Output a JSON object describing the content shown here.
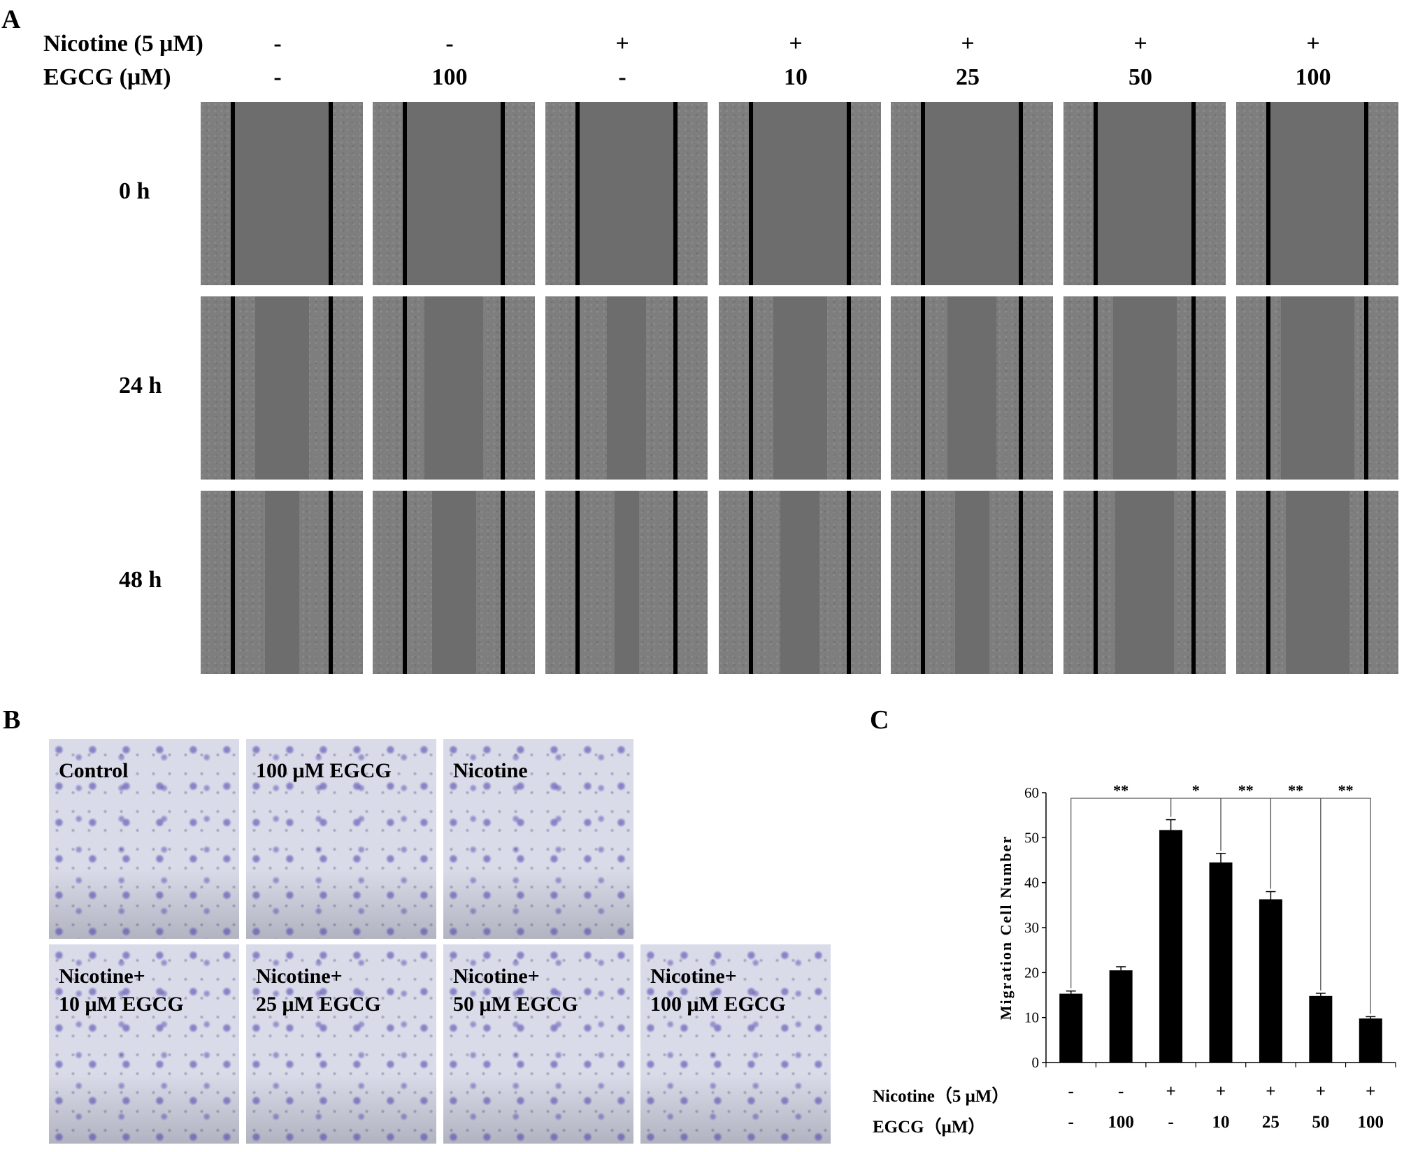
{
  "panel_a": {
    "letter": "A",
    "rows": [
      {
        "label": "Nicotine (5 μM)",
        "values": [
          "-",
          "-",
          "+",
          "+",
          "+",
          "+",
          "+"
        ]
      },
      {
        "label": "EGCG (μM)",
        "values": [
          "-",
          "100",
          "-",
          "10",
          "25",
          "50",
          "100"
        ]
      }
    ],
    "time_labels": [
      "0 h",
      "24 h",
      "48 h"
    ],
    "gap_fractions": [
      [
        1.0,
        1.0,
        1.0,
        1.0,
        1.0,
        1.0,
        1.0
      ],
      [
        0.55,
        0.6,
        0.4,
        0.55,
        0.5,
        0.65,
        0.75
      ],
      [
        0.35,
        0.45,
        0.25,
        0.4,
        0.35,
        0.6,
        0.65
      ]
    ]
  },
  "panel_b": {
    "letter": "B",
    "labels": [
      "Control",
      "100 μM EGCG",
      "Nicotine",
      "Nicotine+\n10 μM EGCG",
      "Nicotine+\n25 μM EGCG",
      "Nicotine+\n50 μM EGCG",
      "Nicotine+\n100 μM EGCG"
    ]
  },
  "panel_c": {
    "letter": "C",
    "row_labels": [
      "Nicotine（5 μM）",
      "EGCG（μM）"
    ],
    "nicotine_values": [
      "-",
      "-",
      "+",
      "+",
      "+",
      "+",
      "+"
    ],
    "egcg_values": [
      "-",
      "100",
      "-",
      "10",
      "25",
      "50",
      "100"
    ]
  },
  "chart_data": {
    "type": "bar",
    "ylabel": "Migration Cell Number",
    "ylim": [
      0,
      60
    ],
    "yticks": [
      0,
      10,
      20,
      30,
      40,
      50,
      60
    ],
    "values": [
      15.3,
      20.5,
      51.7,
      44.5,
      36.3,
      14.8,
      9.8
    ],
    "errors": [
      0.6,
      0.8,
      2.3,
      2.0,
      1.7,
      0.6,
      0.4
    ],
    "bar_color": "#000000",
    "significance": [
      {
        "from_bar": 0,
        "to_bar": 2,
        "label": "**"
      },
      {
        "from_bar": 2,
        "to_bar": 3,
        "label": "*"
      },
      {
        "from_bar": 3,
        "to_bar": 4,
        "label": "**"
      },
      {
        "from_bar": 4,
        "to_bar": 5,
        "label": "**"
      },
      {
        "from_bar": 5,
        "to_bar": 6,
        "label": "**"
      }
    ]
  }
}
